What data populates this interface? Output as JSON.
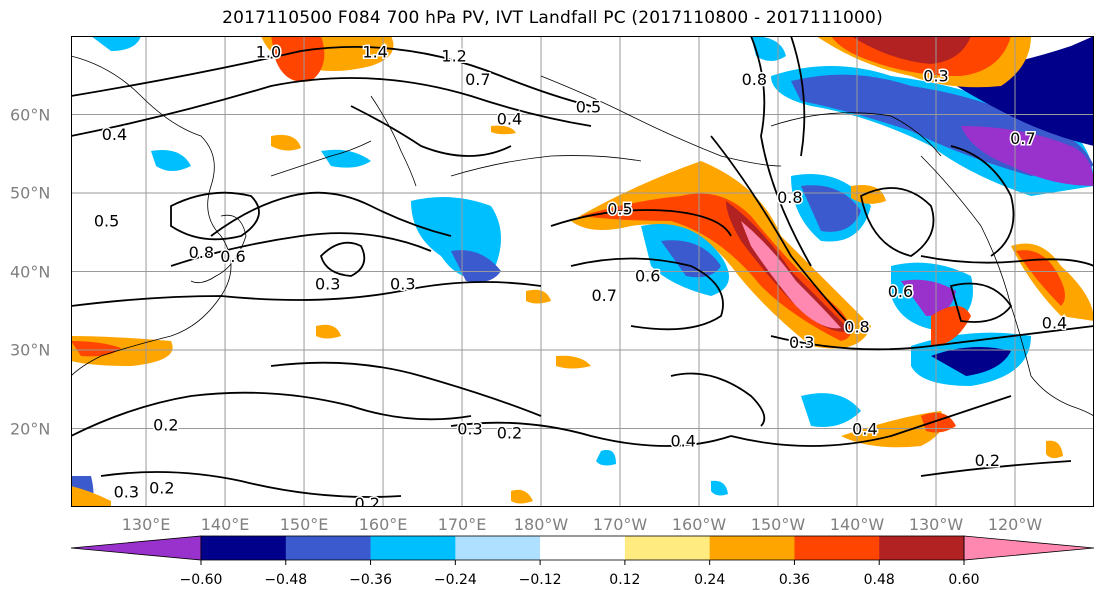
{
  "title": "2017110500 F084 700 hPa PV, IVT Landfall PC (2017110800 - 2017111000)",
  "map": {
    "lat_labels": [
      {
        "label": "60°N",
        "lat": 60
      },
      {
        "label": "50°N",
        "lat": 50
      },
      {
        "label": "40°N",
        "lat": 40
      },
      {
        "label": "30°N",
        "lat": 30
      },
      {
        "label": "20°N",
        "lat": 20
      }
    ],
    "lon_labels": [
      {
        "label": "130°E",
        "lon": 130
      },
      {
        "label": "140°E",
        "lon": 140
      },
      {
        "label": "150°E",
        "lon": 150
      },
      {
        "label": "160°E",
        "lon": 160
      },
      {
        "label": "170°E",
        "lon": 170
      },
      {
        "label": "180°W",
        "lon": 180
      },
      {
        "label": "170°W",
        "lon": 190
      },
      {
        "label": "160°W",
        "lon": 200
      },
      {
        "label": "150°W",
        "lon": 210
      },
      {
        "label": "140°W",
        "lon": 220
      },
      {
        "label": "130°W",
        "lon": 230
      },
      {
        "label": "120°W",
        "lon": 240
      }
    ],
    "lon_range": [
      120.5,
      250
    ],
    "lat_range": [
      10,
      70
    ],
    "grid": true,
    "contour_labels": [
      {
        "text": "1.0",
        "lon": 145.5,
        "lat": 68
      },
      {
        "text": "1.4",
        "lon": 159,
        "lat": 68
      },
      {
        "text": "1.2",
        "lon": 169,
        "lat": 67.5
      },
      {
        "text": "0.7",
        "lon": 172,
        "lat": 64.5
      },
      {
        "text": "0.4",
        "lon": 176,
        "lat": 59.5
      },
      {
        "text": "0.5",
        "lon": 186,
        "lat": 61
      },
      {
        "text": "0.4",
        "lon": 126,
        "lat": 57.5
      },
      {
        "text": "0.8",
        "lon": 207,
        "lat": 64.5
      },
      {
        "text": "0.5",
        "lon": 125,
        "lat": 46.5
      },
      {
        "text": "0.8",
        "lon": 137,
        "lat": 42.5
      },
      {
        "text": "0.6",
        "lon": 141,
        "lat": 42
      },
      {
        "text": "0.3",
        "lon": 153,
        "lat": 38.5
      },
      {
        "text": "0.3",
        "lon": 162.5,
        "lat": 38.5
      },
      {
        "text": "0.5",
        "lon": 190,
        "lat": 48
      },
      {
        "text": "0.7",
        "lon": 188,
        "lat": 37
      },
      {
        "text": "0.6",
        "lon": 193.5,
        "lat": 39.5
      },
      {
        "text": "0.8",
        "lon": 211.5,
        "lat": 49.5
      },
      {
        "text": "0.6",
        "lon": 225.5,
        "lat": 37.5
      },
      {
        "text": "0.8",
        "lon": 220,
        "lat": 33
      },
      {
        "text": "0.3",
        "lon": 213,
        "lat": 31
      },
      {
        "text": "0.7",
        "lon": 241,
        "lat": 57
      },
      {
        "text": "0.4",
        "lon": 245,
        "lat": 33.5
      },
      {
        "text": "0.2",
        "lon": 132.5,
        "lat": 20.5
      },
      {
        "text": "0.3",
        "lon": 171,
        "lat": 20
      },
      {
        "text": "0.2",
        "lon": 176,
        "lat": 19.5
      },
      {
        "text": "0.4",
        "lon": 198,
        "lat": 18.5
      },
      {
        "text": "0.4",
        "lon": 221,
        "lat": 20
      },
      {
        "text": "0.2",
        "lon": 236.5,
        "lat": 16
      },
      {
        "text": "0.2",
        "lon": 132,
        "lat": 12.5
      },
      {
        "text": "0.3",
        "lon": 127.5,
        "lat": 12
      },
      {
        "text": "0.2",
        "lon": 158,
        "lat": 10.5
      },
      {
        "text": "0.3",
        "lon": 230,
        "lat": 65
      }
    ]
  },
  "colorbar": {
    "colors": [
      "#9932cc",
      "#00008b",
      "#3a5acd",
      "#00bfff",
      "#b0e0ff",
      "#ffffff",
      "#ffeb80",
      "#ffa500",
      "#ff4500",
      "#b22222",
      "#ff88b0"
    ],
    "ticks": [
      "−0.60",
      "−0.48",
      "−0.36",
      "−0.24",
      "−0.12",
      "0.12",
      "0.24",
      "0.36",
      "0.48",
      "0.60"
    ]
  }
}
